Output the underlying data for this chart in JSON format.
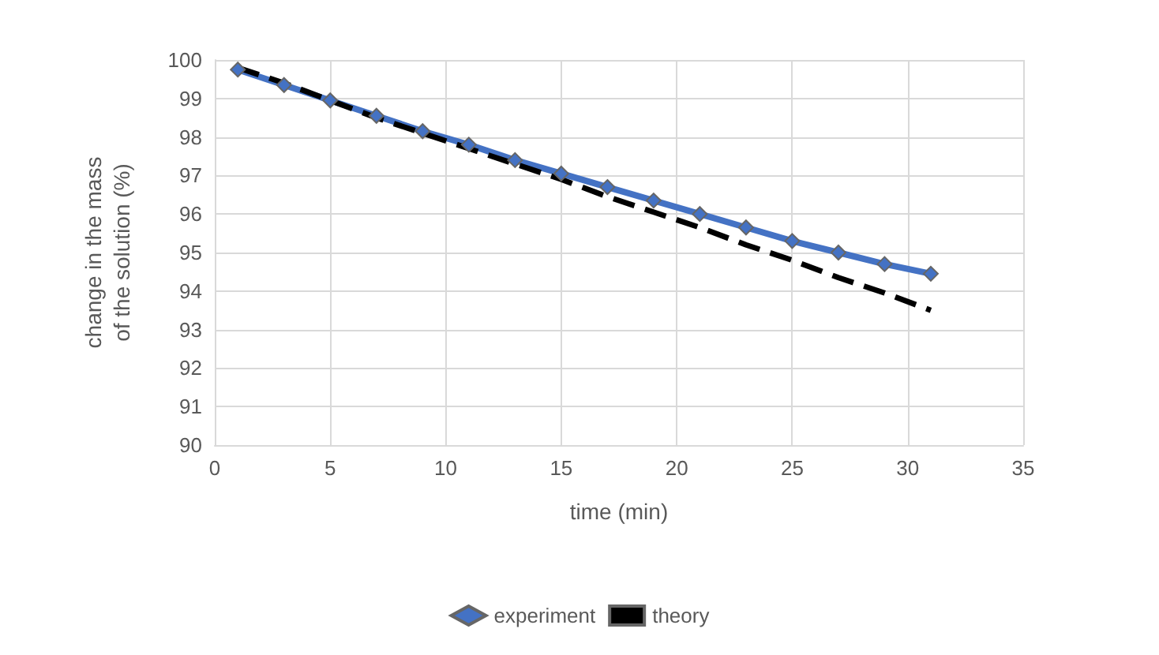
{
  "chart_data": {
    "type": "line",
    "xlabel": "time (min)",
    "ylabel": "change in the mass\nof the solution (%)",
    "xlim": [
      0,
      35
    ],
    "xticks": [
      0,
      5,
      10,
      15,
      20,
      25,
      30,
      35
    ],
    "ylim": [
      90,
      100
    ],
    "yticks": [
      90,
      91,
      92,
      93,
      94,
      95,
      96,
      97,
      98,
      99,
      100
    ],
    "grid": true,
    "legend": "bottom",
    "x": [
      1,
      3,
      5,
      7,
      9,
      11,
      13,
      15,
      17,
      19,
      21,
      23,
      25,
      27,
      29,
      31
    ],
    "series": [
      {
        "name": "experiment",
        "color": "#4472c4",
        "marker": "diamond",
        "line_style": "solid",
        "values": [
          99.75,
          99.35,
          98.95,
          98.55,
          98.15,
          97.8,
          97.4,
          97.05,
          96.7,
          96.35,
          96.0,
          95.65,
          95.3,
          95.0,
          94.7,
          94.45
        ]
      },
      {
        "name": "theory",
        "color": "#000000",
        "marker": "none",
        "line_style": "dashed",
        "values": [
          99.8,
          99.4,
          98.95,
          98.5,
          98.1,
          97.7,
          97.3,
          96.9,
          96.45,
          96.05,
          95.65,
          95.2,
          94.8,
          94.35,
          93.95,
          93.5
        ]
      }
    ]
  }
}
